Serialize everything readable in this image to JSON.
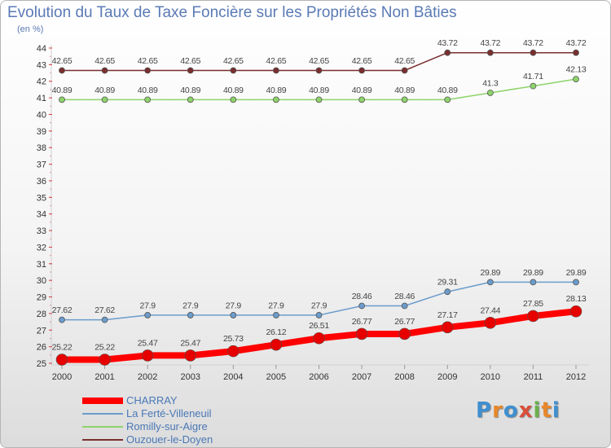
{
  "title": "Evolution du Taux de Taxe Foncière sur les Propriétés Non Bâties",
  "unit": "(en %)",
  "logo": {
    "letters": [
      "P",
      "r",
      "o",
      "x",
      "i",
      "t",
      "i"
    ],
    "colors": [
      "#3f8fd0",
      "#e8872a",
      "#3f8fd0",
      "#d94f3a",
      "#6ab04c",
      "#e8872a",
      "#3f8fd0"
    ]
  },
  "chart_data": {
    "type": "line",
    "x": [
      "2000",
      "2001",
      "2002",
      "2003",
      "2004",
      "2005",
      "2006",
      "2007",
      "2008",
      "2009",
      "2010",
      "2011",
      "2012"
    ],
    "y_ticks": [
      "25",
      "26",
      "27",
      "28",
      "29",
      "30",
      "31",
      "32",
      "33",
      "34",
      "35",
      "36",
      "37",
      "38",
      "39",
      "40",
      "41",
      "42",
      "43",
      "44"
    ],
    "ylim": [
      25,
      44
    ],
    "grid": false,
    "legend": "bottom-left",
    "series": [
      {
        "name": "CHARRAY",
        "color": "#ff0000",
        "marker": "#e60000",
        "width": 8,
        "r": 7,
        "values": [
          25.22,
          25.22,
          25.47,
          25.47,
          25.73,
          26.12,
          26.51,
          26.77,
          26.77,
          27.17,
          27.44,
          27.85,
          28.13
        ],
        "labels": [
          "25.22",
          "25.22",
          "25.47",
          "25.47",
          "25.73",
          "26.12",
          "26.51",
          "26.77",
          "26.77",
          "27.17",
          "27.44",
          "27.85",
          "28.13"
        ]
      },
      {
        "name": "La Ferté-Villeneuil",
        "color": "#6b9ccc",
        "marker": "#6b9ccc",
        "width": 1.5,
        "r": 3.5,
        "values": [
          27.62,
          27.62,
          27.9,
          27.9,
          27.9,
          27.9,
          27.9,
          28.46,
          28.46,
          29.31,
          29.89,
          29.89,
          29.89
        ],
        "labels": [
          "27.62",
          "27.62",
          "27.9",
          "27.9",
          "27.9",
          "27.9",
          "27.9",
          "28.46",
          "28.46",
          "29.31",
          "29.89",
          "29.89",
          "29.89"
        ]
      },
      {
        "name": "Romilly-sur-Aigre",
        "color": "#8ed36b",
        "marker": "#8ed36b",
        "width": 1.5,
        "r": 3.5,
        "values": [
          40.89,
          40.89,
          40.89,
          40.89,
          40.89,
          40.89,
          40.89,
          40.89,
          40.89,
          40.89,
          41.3,
          41.71,
          42.13
        ],
        "labels": [
          "40.89",
          "40.89",
          "40.89",
          "40.89",
          "40.89",
          "40.89",
          "40.89",
          "40.89",
          "40.89",
          "40.89",
          "41.3",
          "41.71",
          "42.13"
        ]
      },
      {
        "name": "Ouzouer-le-Doyen",
        "color": "#7a2e2e",
        "marker": "#7a2e2e",
        "width": 1.5,
        "r": 3.5,
        "values": [
          42.65,
          42.65,
          42.65,
          42.65,
          42.65,
          42.65,
          42.65,
          42.65,
          42.65,
          43.72,
          43.72,
          43.72,
          43.72
        ],
        "labels": [
          "42.65",
          "42.65",
          "42.65",
          "42.65",
          "42.65",
          "42.65",
          "42.65",
          "42.65",
          "42.65",
          "43.72",
          "43.72",
          "43.72",
          "43.72"
        ]
      }
    ]
  }
}
